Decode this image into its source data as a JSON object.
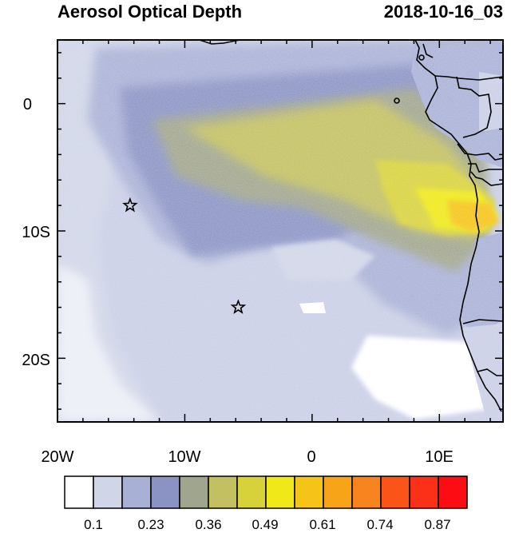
{
  "map": {
    "title": "Aerosol Optical Depth",
    "timestamp": "2018-10-16_03",
    "x_ticks": [
      {
        "lon": -20,
        "label": "20W"
      },
      {
        "lon": -10,
        "label": "10W"
      },
      {
        "lon": 0,
        "label": "0"
      },
      {
        "lon": 10,
        "label": "10E"
      }
    ],
    "y_ticks": [
      {
        "lat": 0,
        "label": "0"
      },
      {
        "lat": -10,
        "label": "10S"
      },
      {
        "lat": -20,
        "label": "20S"
      }
    ],
    "extent": {
      "lon_min": -20,
      "lon_max": 15,
      "lat_min": -25,
      "lat_max": 5
    },
    "markers": [
      {
        "name": "star-marker-1",
        "lon": -14.3,
        "lat": -8.0,
        "symbol": "star"
      },
      {
        "name": "star-marker-2",
        "lon": -5.8,
        "lat": -16.0,
        "symbol": "star"
      }
    ],
    "colorbar": {
      "colors": [
        "#ffffff",
        "#d0d5e8",
        "#a9b0d6",
        "#8a93c4",
        "#a0a58d",
        "#c2c060",
        "#d8d23a",
        "#f0e818",
        "#f5c418",
        "#f7a418",
        "#f88420",
        "#fa5418",
        "#fc3018",
        "#fe0c14"
      ],
      "labels": [
        "0.1",
        "0.23",
        "0.36",
        "0.49",
        "0.61",
        "0.74",
        "0.87"
      ]
    }
  }
}
